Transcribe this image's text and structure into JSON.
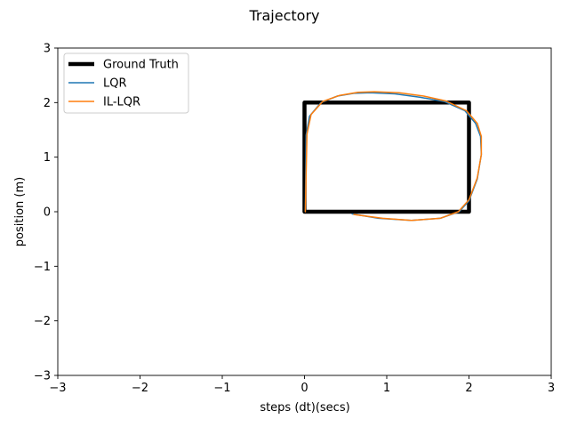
{
  "chart_data": {
    "type": "line",
    "title": "Trajectory",
    "xlabel": "steps (dt)(secs)",
    "ylabel": "position (m)",
    "xlim": [
      -3,
      3
    ],
    "ylim": [
      -3,
      3
    ],
    "xticks": [
      -3,
      -2,
      -1,
      0,
      1,
      2,
      3
    ],
    "yticks": [
      -3,
      -2,
      -1,
      0,
      1,
      2,
      3
    ],
    "xtick_labels": [
      "−3",
      "−2",
      "−1",
      "0",
      "1",
      "2",
      "3"
    ],
    "ytick_labels": [
      "−3",
      "−2",
      "−1",
      "0",
      "1",
      "2",
      "3"
    ],
    "grid": false,
    "legend_position": "upper-left",
    "series": [
      {
        "name": "Ground Truth",
        "color": "#000000",
        "x": [
          0,
          2,
          2,
          0,
          0
        ],
        "y": [
          0,
          0,
          2,
          2,
          0
        ]
      },
      {
        "name": "LQR",
        "color": "#1f77b4",
        "x": [
          0.58,
          0.9,
          1.3,
          1.65,
          1.88,
          2.0,
          2.1,
          2.15,
          2.14,
          2.08,
          1.95,
          1.7,
          1.4,
          1.1,
          0.8,
          0.6,
          0.4,
          0.2,
          0.06,
          0.02,
          0.01
        ],
        "y": [
          -0.04,
          -0.12,
          -0.16,
          -0.12,
          0.0,
          0.2,
          0.6,
          1.05,
          1.38,
          1.62,
          1.85,
          2.02,
          2.1,
          2.16,
          2.18,
          2.17,
          2.12,
          2.0,
          1.75,
          1.4,
          0.0
        ]
      },
      {
        "name": "IL-LQR",
        "color": "#ff7f0e",
        "x": [
          0.6,
          0.95,
          1.3,
          1.65,
          1.87,
          2.0,
          2.1,
          2.15,
          2.15,
          2.1,
          1.97,
          1.72,
          1.45,
          1.15,
          0.85,
          0.65,
          0.42,
          0.22,
          0.08,
          0.03,
          0.01
        ],
        "y": [
          -0.05,
          -0.12,
          -0.16,
          -0.12,
          0.0,
          0.22,
          0.62,
          1.05,
          1.38,
          1.62,
          1.85,
          2.03,
          2.12,
          2.18,
          2.2,
          2.19,
          2.13,
          2.02,
          1.78,
          1.42,
          0.0
        ]
      }
    ]
  }
}
